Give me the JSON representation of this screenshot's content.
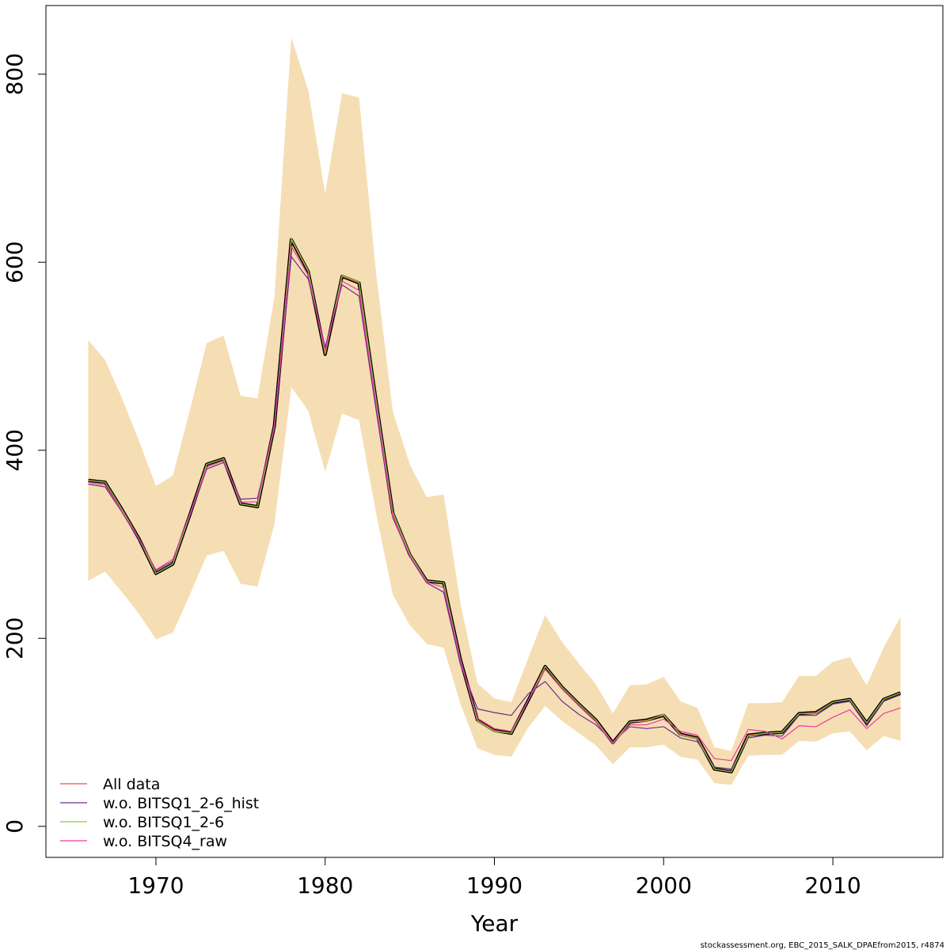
{
  "chart_data": {
    "type": "line",
    "xlabel": "Year",
    "ylabel": "",
    "xlim": [
      1963.5,
      2016.5
    ],
    "ylim": [
      -33,
      873
    ],
    "x_ticks": [
      1970,
      1980,
      1990,
      2000,
      2010
    ],
    "y_ticks": [
      0,
      200,
      400,
      600,
      800
    ],
    "grid": false,
    "legend_position": "bottom-left",
    "colors": {
      "band": "#f5deb3",
      "main_line": "#000000",
      "frame": "#000000"
    },
    "x": [
      1966,
      1967,
      1968,
      1969,
      1970,
      1971,
      1972,
      1973,
      1974,
      1975,
      1976,
      1977,
      1978,
      1979,
      1980,
      1981,
      1982,
      1983,
      1984,
      1985,
      1986,
      1987,
      1988,
      1989,
      1990,
      1991,
      1992,
      1993,
      1994,
      1995,
      1996,
      1997,
      1998,
      1999,
      2000,
      2001,
      2002,
      2003,
      2004,
      2005,
      2006,
      2007,
      2008,
      2009,
      2010,
      2011,
      2012,
      2013,
      2014
    ],
    "band_upper": [
      517,
      496,
      455,
      410,
      362,
      373,
      442,
      514,
      522,
      458,
      455,
      563,
      839,
      783,
      673,
      780,
      775,
      590,
      441,
      385,
      350,
      353,
      237,
      152,
      136,
      132,
      179,
      225,
      196,
      173,
      151,
      120,
      150,
      151,
      159,
      133,
      126,
      84,
      80,
      131,
      131,
      132,
      160,
      160,
      175,
      180,
      150,
      190,
      223
    ],
    "band_lower": [
      261,
      271,
      249,
      226,
      199,
      206,
      246,
      288,
      293,
      258,
      255,
      321,
      467,
      442,
      377,
      439,
      432,
      334,
      246,
      214,
      194,
      190,
      130,
      83,
      76,
      74,
      105,
      128,
      112,
      99,
      86,
      66,
      84,
      84,
      87,
      74,
      71,
      46,
      44,
      75,
      76,
      76,
      91,
      90,
      99,
      101,
      81,
      96,
      91
    ],
    "series": [
      {
        "name": "All data",
        "color": "#e8514f",
        "values": [
          368,
          366,
          337,
          306,
          269,
          279,
          331,
          385,
          391,
          343,
          340,
          426,
          624,
          590,
          502,
          585,
          578,
          454,
          333,
          289,
          261,
          259,
          177,
          113,
          102,
          99,
          134,
          170,
          148,
          130,
          113,
          89,
          111,
          113,
          118,
          98,
          94,
          61,
          58,
          97,
          99,
          100,
          120,
          121,
          132,
          135,
          110,
          135,
          142
        ]
      },
      {
        "name": "w.o. BITSQ1_2-6_hist",
        "color": "#6f2a91",
        "values": [
          364,
          361,
          334,
          305,
          272,
          282,
          330,
          380,
          387,
          348,
          349,
          424,
          606,
          582,
          510,
          576,
          564,
          444,
          328,
          287,
          259,
          249,
          172,
          125,
          121,
          118,
          141,
          154,
          133,
          119,
          108,
          90,
          106,
          104,
          106,
          94,
          90,
          63,
          61,
          94,
          97,
          96,
          118,
          118,
          130,
          133,
          107,
          133,
          140
        ]
      },
      {
        "name": "w.o. BITSQ1_2-6",
        "color": "#8cc63e",
        "values": [
          368,
          366,
          337,
          306,
          269,
          279,
          331,
          385,
          391,
          343,
          340,
          426,
          625,
          591,
          503,
          586,
          579,
          455,
          334,
          290,
          261,
          259,
          177,
          112,
          101,
          99,
          134,
          170,
          148,
          130,
          113,
          88,
          111,
          112,
          119,
          97,
          93,
          61,
          58,
          96,
          99,
          100,
          120,
          120,
          132,
          135,
          110,
          135,
          142
        ]
      },
      {
        "name": "w.o. BITSQ4_raw",
        "color": "#ee3aa0",
        "values": [
          366,
          363,
          335,
          306,
          273,
          284,
          332,
          382,
          389,
          345,
          345,
          427,
          617,
          586,
          506,
          580,
          570,
          450,
          330,
          288,
          260,
          254,
          176,
          115,
          104,
          101,
          134,
          167,
          146,
          128,
          111,
          88,
          108,
          108,
          114,
          101,
          97,
          72,
          70,
          103,
          101,
          93,
          107,
          106,
          116,
          124,
          104,
          120,
          126
        ]
      }
    ],
    "footer": "stockassessment.org, EBC_2015_SALK_DPAEfrom2015, r4874"
  }
}
